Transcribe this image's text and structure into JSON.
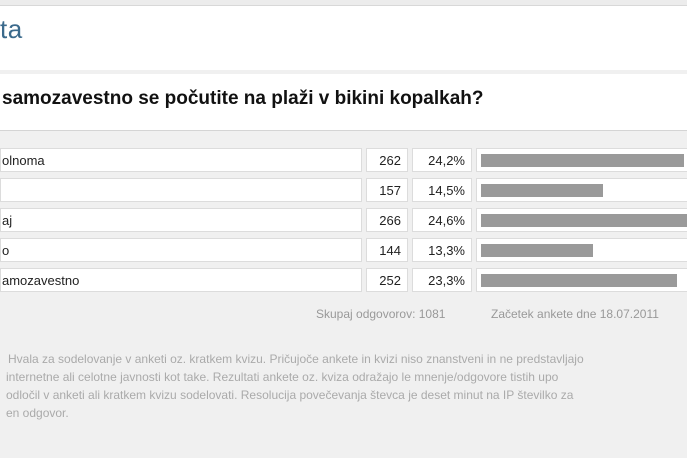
{
  "header": {
    "title": "ta"
  },
  "poll": {
    "question": "samozavestno se počutite na plaži v bikini kopalkah?",
    "answers": [
      {
        "label": "olnoma",
        "count": "262",
        "percent": "24,2%",
        "fraction": 0.242
      },
      {
        "label": "",
        "count": "157",
        "percent": "14,5%",
        "fraction": 0.145
      },
      {
        "label": "aj",
        "count": "266",
        "percent": "24,6%",
        "fraction": 0.246
      },
      {
        "label": "o",
        "count": "144",
        "percent": "13,3%",
        "fraction": 0.133
      },
      {
        "label": "amozavestno",
        "count": "252",
        "percent": "23,3%",
        "fraction": 0.233
      }
    ],
    "total_text": "Skupaj odgovorov: 1081",
    "start_text": "Začetek ankete dne 18.07.2011"
  },
  "disclaimer": {
    "lines": [
      "Hvala za sodelovanje v anketi oz. kratkem kvizu. Pričujoče ankete in kvizi niso znanstveni in ne predstavljajo",
      "internetne ali celotne javnosti kot take. Rezultati ankete oz. kviza odražajo le mnenje/odgovore tistih upo",
      "odločil v anketi ali kratkem kvizu sodelovati. Resolucija povečevanja števca je deset minut na IP številko za",
      "en odgovor."
    ]
  },
  "colors": {
    "title": "#3b6a8c",
    "bar": "#9a9a9a",
    "panel": "#f0f0f0"
  }
}
